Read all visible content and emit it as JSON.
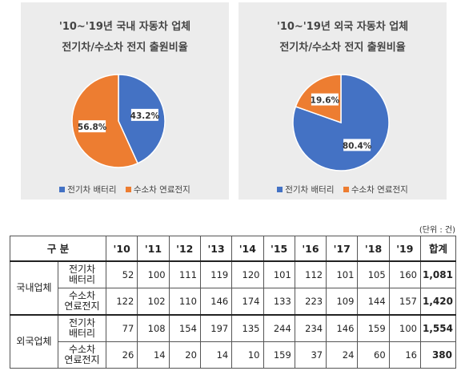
{
  "chart_data": [
    {
      "type": "pie",
      "title_line1": "'10~'19년 국내 자동차 업체",
      "title_line2": "전기차/수소차 전지 출원비율",
      "categories": [
        "전기차 배터리",
        "수소차 연료전지"
      ],
      "values": [
        43.2,
        56.8
      ],
      "labels": [
        "43.2%",
        "56.8%"
      ],
      "colors": [
        "#4472c4",
        "#ed7d31"
      ],
      "legend_position": "bottom"
    },
    {
      "type": "pie",
      "title_line1": "'10~'19년 외국 자동차 업체",
      "title_line2": "전기차/수소차 전지 출원비율",
      "categories": [
        "전기차 배터리",
        "수소차 연료전지"
      ],
      "values": [
        80.4,
        19.6
      ],
      "labels": [
        "80.4%",
        "19.6%"
      ],
      "colors": [
        "#4472c4",
        "#ed7d31"
      ],
      "legend_position": "bottom"
    }
  ],
  "table": {
    "unit": "(단위 : 건)",
    "header_group": "구 분",
    "years": [
      "'10",
      "'11",
      "'12",
      "'13",
      "'14",
      "'15",
      "'16",
      "'17",
      "'18",
      "'19"
    ],
    "total_header": "합계",
    "rows": [
      {
        "group": "국내업체",
        "type_line1": "전기차",
        "type_line2": "배터리",
        "values": [
          "52",
          "100",
          "111",
          "119",
          "120",
          "101",
          "112",
          "101",
          "105",
          "160"
        ],
        "total": "1,081"
      },
      {
        "group": "",
        "type_line1": "수소차",
        "type_line2": "연료전지",
        "values": [
          "122",
          "102",
          "110",
          "146",
          "174",
          "133",
          "223",
          "109",
          "144",
          "157"
        ],
        "total": "1,420"
      },
      {
        "group": "외국업체",
        "type_line1": "전기차",
        "type_line2": "배터리",
        "values": [
          "77",
          "108",
          "154",
          "197",
          "135",
          "244",
          "234",
          "146",
          "159",
          "100"
        ],
        "total": "1,554"
      },
      {
        "group": "",
        "type_line1": "수소차",
        "type_line2": "연료전지",
        "values": [
          "26",
          "14",
          "20",
          "14",
          "10",
          "159",
          "37",
          "24",
          "60",
          "16"
        ],
        "total": "380"
      }
    ]
  }
}
